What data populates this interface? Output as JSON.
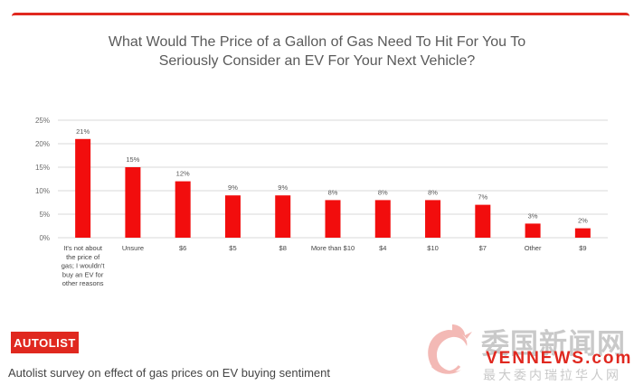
{
  "chart_data": {
    "type": "bar",
    "title_lines": [
      "What Would The Price of a Gallon of Gas Need To Hit For You To",
      "Seriously Consider an EV For Your Next Vehicle?"
    ],
    "categories": [
      [
        "It's not about",
        "the price of",
        "gas; I wouldn't",
        "buy an EV for",
        "other reasons"
      ],
      [
        "Unsure"
      ],
      [
        "$6"
      ],
      [
        "$5"
      ],
      [
        "$8"
      ],
      [
        "More than $10"
      ],
      [
        "$4"
      ],
      [
        "$10"
      ],
      [
        "$7"
      ],
      [
        "Other"
      ],
      [
        "$9"
      ]
    ],
    "values": [
      21,
      15,
      12,
      9,
      9,
      8,
      8,
      8,
      7,
      3,
      2
    ],
    "data_labels": [
      "21%",
      "15%",
      "12%",
      "9%",
      "9%",
      "8%",
      "8%",
      "8%",
      "7%",
      "3%",
      "2%"
    ],
    "ylim": [
      0,
      25
    ],
    "yticks": [
      0,
      5,
      10,
      15,
      20,
      25
    ],
    "ytick_labels": [
      "0%",
      "5%",
      "10%",
      "15%",
      "20%",
      "25%"
    ],
    "grid": true,
    "bar_color": "#f20d0d"
  },
  "brand": {
    "logo_text": "AUTOLIST",
    "accent": "#e0281f"
  },
  "caption": "Autolist survey on effect of gas prices on EV buying sentiment",
  "watermark": {
    "chinese": "委国新闻网",
    "english": "VENNEWS.com",
    "subtitle": "最大委内瑞拉华人网"
  }
}
